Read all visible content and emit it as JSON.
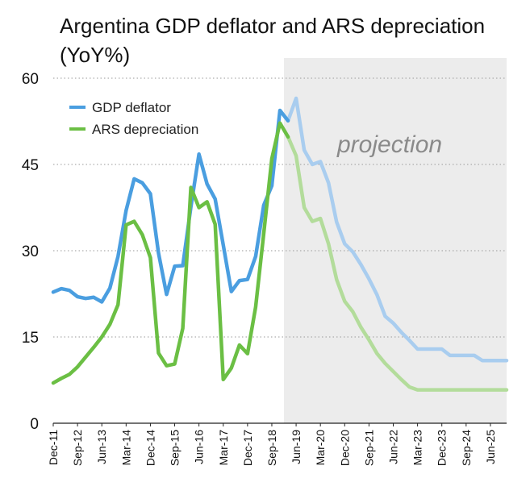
{
  "chart_data": {
    "type": "line",
    "title": "Argentina GDP deflator and ARS depreciation (YoY%)",
    "xlabel": "",
    "ylabel": "",
    "ylim": [
      0,
      60
    ],
    "yticks": [
      0,
      15,
      30,
      45,
      60
    ],
    "grid": "horizontal dotted",
    "legend_position": "top-left",
    "annotation": "projection",
    "x_tick_labels": [
      "Dec-11",
      "Sep-12",
      "Jun-13",
      "Mar-14",
      "Dec-14",
      "Sep-15",
      "Jun-16",
      "Mar-17",
      "Dec-17",
      "Sep-18",
      "Jun-19",
      "Mar-20",
      "Dec-20",
      "Sep-21",
      "Jun-22",
      "Mar-23",
      "Dec-23",
      "Sep-24",
      "Jun-25"
    ],
    "x": [
      "Dec-11",
      "Mar-12",
      "Jun-12",
      "Sep-12",
      "Dec-12",
      "Mar-13",
      "Jun-13",
      "Sep-13",
      "Dec-13",
      "Mar-14",
      "Jun-14",
      "Sep-14",
      "Dec-14",
      "Mar-15",
      "Jun-15",
      "Sep-15",
      "Dec-15",
      "Mar-16",
      "Jun-16",
      "Sep-16",
      "Dec-16",
      "Mar-17",
      "Jun-17",
      "Sep-17",
      "Dec-17",
      "Mar-18",
      "Jun-18",
      "Sep-18",
      "Dec-18",
      "Mar-19",
      "Jun-19",
      "Sep-19",
      "Dec-19",
      "Mar-20",
      "Jun-20",
      "Sep-20",
      "Dec-20",
      "Mar-21",
      "Jun-21",
      "Sep-21",
      "Dec-21",
      "Mar-22",
      "Jun-22",
      "Sep-22",
      "Dec-22",
      "Mar-23",
      "Jun-23",
      "Sep-23",
      "Dec-23",
      "Mar-24",
      "Jun-24",
      "Sep-24",
      "Dec-24",
      "Mar-25",
      "Jun-25",
      "Sep-25",
      "Dec-25"
    ],
    "projection_start": "Mar-19",
    "projection_end": "Dec-25",
    "series": [
      {
        "name": "GDP deflator",
        "color": "#4a9ee0",
        "projection_color": "#a9cdef",
        "values": [
          22.8,
          23.4,
          23.1,
          22.0,
          21.7,
          21.9,
          21.1,
          23.5,
          29.0,
          37.0,
          42.5,
          41.8,
          39.9,
          29.6,
          22.4,
          27.3,
          27.4,
          37.6,
          46.8,
          41.6,
          39.0,
          31.0,
          22.9,
          24.8,
          25.0,
          29.0,
          37.9,
          41.3,
          54.4,
          52.6,
          56.5,
          47.5,
          45.0,
          45.5,
          41.8,
          35.0,
          31.2,
          29.8,
          27.6,
          25.1,
          22.3,
          18.6,
          17.4,
          15.8,
          14.4,
          12.9,
          12.9,
          12.9,
          12.9,
          11.8,
          11.8,
          11.8,
          11.8,
          10.9,
          10.9,
          10.9,
          10.9
        ]
      },
      {
        "name": "ARS depreciation",
        "color": "#6bbf44",
        "projection_color": "#b3dc9b",
        "values": [
          7.0,
          7.8,
          8.5,
          9.8,
          11.5,
          13.2,
          15.0,
          17.2,
          20.6,
          34.5,
          35.1,
          32.8,
          28.8,
          12.2,
          10.0,
          10.3,
          16.5,
          41.0,
          37.5,
          38.5,
          34.6,
          7.6,
          9.6,
          13.6,
          12.1,
          20.2,
          33.0,
          46.0,
          52.2,
          49.8,
          46.5,
          37.5,
          35.1,
          35.6,
          31.2,
          25.0,
          21.2,
          19.4,
          16.7,
          14.5,
          12.1,
          10.4,
          9.0,
          7.6,
          6.3,
          5.8,
          5.8,
          5.8,
          5.8,
          5.8,
          5.8,
          5.8,
          5.8,
          5.8,
          5.8,
          5.8,
          5.8
        ]
      }
    ]
  }
}
